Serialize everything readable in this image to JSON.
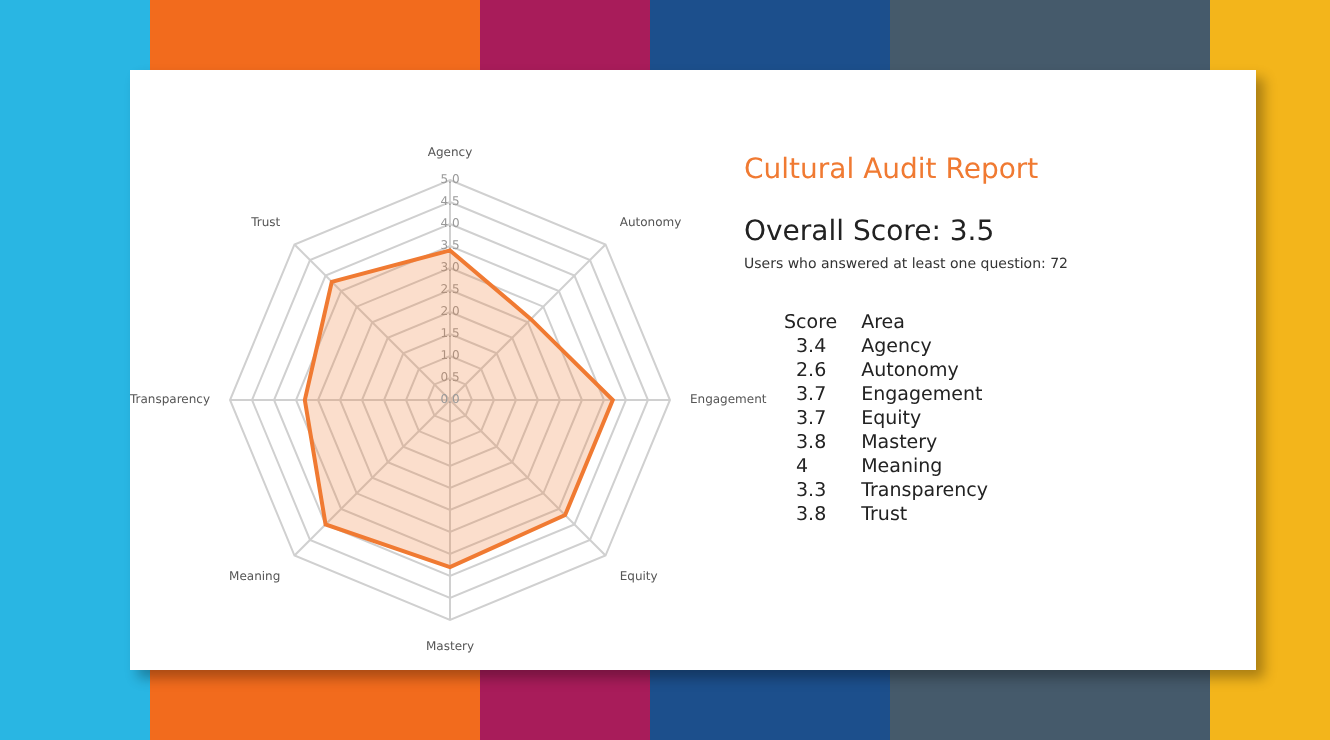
{
  "chart_data": {
    "type": "radar",
    "title": "Cultural Audit Report",
    "subtitle": "Overall Score: 3.5",
    "annotations": [
      "Users who answered at least one question: 72",
      "Score",
      "Area",
      "3.4",
      "2.6",
      "3.7",
      "3.7",
      "3.8",
      "4",
      "3.3",
      "3.8"
    ],
    "categories": [
      "Agency",
      "Autonomy",
      "Engagement",
      "Equity",
      "Mastery",
      "Meaning",
      "Transparency",
      "Trust"
    ],
    "series": [
      {
        "color": "#f07a32",
        "values": [
          3.4,
          2.6,
          3.7,
          3.7,
          3.8,
          4,
          3.3,
          3.8
        ]
      }
    ],
    "ylim": [
      0,
      5
    ],
    "yticks": [
      {
        "value": 0,
        "label": "0.0"
      },
      0.5,
      {
        "value": 1,
        "label": "1.0"
      },
      1.5,
      {
        "value": 2,
        "label": "2.0"
      },
      2.5,
      {
        "value": 3,
        "label": "3.0"
      },
      3.5,
      {
        "value": 4,
        "label": "4.0"
      },
      4.5,
      {
        "value": 5,
        "label": "5.0"
      }
    ],
    "grid": true,
    "legend": false
  }
}
